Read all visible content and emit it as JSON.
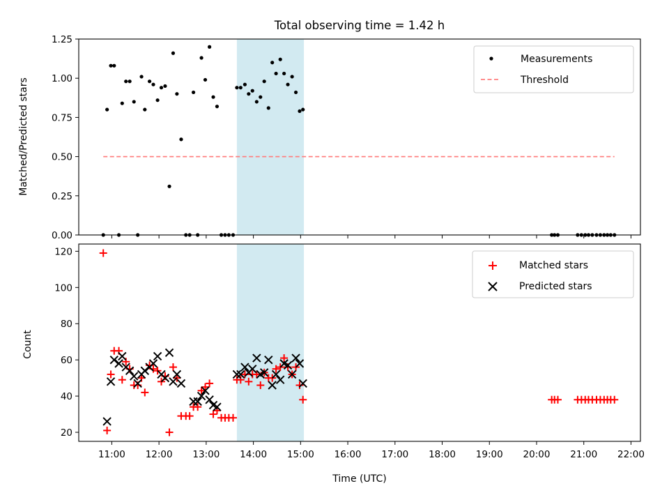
{
  "chart_data": [
    {
      "type": "scatter",
      "title": "Total observing time = 1.42 h",
      "xlabel": "",
      "ylabel": "Matched/Predicted stars",
      "ylim": [
        0,
        1.25
      ],
      "yticks": [
        "0.00",
        "0.25",
        "0.50",
        "0.75",
        "1.00",
        "1.25"
      ],
      "xlim_hours": [
        10.3,
        22.2
      ],
      "highlight_span_hours": [
        13.65,
        15.07
      ],
      "highlight_color": "#add8e6",
      "legend_position": "top-right",
      "series": [
        {
          "name": "Measurements",
          "color": "#000000",
          "marker": "dot",
          "x_hours": [
            10.82,
            10.9,
            10.98,
            11.05,
            11.15,
            11.22,
            11.3,
            11.38,
            11.47,
            11.55,
            11.63,
            11.7,
            11.8,
            11.88,
            11.97,
            12.05,
            12.13,
            12.22,
            12.3,
            12.38,
            12.47,
            12.57,
            12.65,
            12.73,
            12.82,
            12.9,
            12.98,
            13.07,
            13.15,
            13.23,
            13.32,
            13.4,
            13.48,
            13.57,
            13.65,
            13.73,
            13.82,
            13.9,
            13.98,
            14.07,
            14.15,
            14.23,
            14.32,
            14.4,
            14.48,
            14.57,
            14.65,
            14.73,
            14.82,
            14.9,
            14.98,
            15.05,
            20.32,
            20.38,
            20.45,
            20.87,
            20.95,
            21.03,
            21.1,
            21.18,
            21.27,
            21.35,
            21.43,
            21.5,
            21.57,
            21.65
          ],
          "y": [
            0.0,
            0.8,
            1.08,
            1.08,
            0.0,
            0.84,
            0.98,
            0.98,
            0.85,
            0.0,
            1.01,
            0.8,
            0.98,
            0.96,
            0.86,
            0.94,
            0.95,
            0.31,
            1.16,
            0.9,
            0.61,
            0.0,
            0.0,
            0.91,
            0.0,
            1.13,
            0.99,
            1.2,
            0.88,
            0.82,
            0.0,
            0.0,
            0.0,
            0.0,
            0.94,
            0.94,
            0.96,
            0.9,
            0.92,
            0.85,
            0.88,
            0.98,
            0.81,
            1.1,
            1.03,
            1.12,
            1.03,
            0.96,
            1.01,
            0.91,
            0.79,
            0.8,
            0.0,
            0.0,
            0.0,
            0.0,
            0.0,
            0.0,
            0.0,
            0.0,
            0.0,
            0.0,
            0.0,
            0.0,
            0.0,
            0.0
          ]
        },
        {
          "name": "Threshold",
          "color": "#ff7f7f",
          "style": "dashed",
          "x_hours": [
            10.82,
            21.65
          ],
          "y": [
            0.5,
            0.5
          ]
        }
      ]
    },
    {
      "type": "scatter",
      "title": "",
      "xlabel": "Time (UTC)",
      "ylabel": "Count",
      "ylim": [
        15,
        124
      ],
      "yticks": [
        "20",
        "40",
        "60",
        "80",
        "100",
        "120"
      ],
      "xlim_hours": [
        10.3,
        22.2
      ],
      "xticks": [
        "11:00",
        "12:00",
        "13:00",
        "14:00",
        "15:00",
        "16:00",
        "17:00",
        "18:00",
        "19:00",
        "20:00",
        "21:00",
        "22:00"
      ],
      "highlight_span_hours": [
        13.65,
        15.07
      ],
      "highlight_color": "#add8e6",
      "legend_position": "top-right",
      "series": [
        {
          "name": "Matched stars",
          "color": "#ff0000",
          "marker": "plus",
          "x_hours": [
            10.82,
            10.9,
            10.98,
            11.05,
            11.15,
            11.22,
            11.3,
            11.38,
            11.47,
            11.55,
            11.63,
            11.7,
            11.8,
            11.88,
            11.97,
            12.05,
            12.13,
            12.22,
            12.3,
            12.38,
            12.47,
            12.57,
            12.65,
            12.73,
            12.82,
            12.9,
            12.98,
            13.07,
            13.15,
            13.23,
            13.32,
            13.4,
            13.48,
            13.57,
            13.65,
            13.73,
            13.82,
            13.9,
            13.98,
            14.07,
            14.15,
            14.23,
            14.32,
            14.4,
            14.48,
            14.57,
            14.65,
            14.73,
            14.82,
            14.9,
            14.98,
            15.05,
            20.32,
            20.38,
            20.45,
            20.87,
            20.95,
            21.03,
            21.1,
            21.18,
            21.27,
            21.35,
            21.43,
            21.5,
            21.57,
            21.65
          ],
          "y": [
            119,
            21,
            52,
            65,
            65,
            49,
            59,
            55,
            46,
            46,
            50,
            42,
            57,
            55,
            54,
            48,
            51,
            20,
            56,
            50,
            29,
            29,
            29,
            34,
            34,
            43,
            45,
            47,
            30,
            32,
            28,
            28,
            28,
            28,
            49,
            49,
            52,
            48,
            52,
            52,
            46,
            53,
            50,
            50,
            55,
            56,
            61,
            56,
            52,
            56,
            46,
            38,
            38,
            38,
            38,
            38,
            38,
            38,
            38,
            38,
            38,
            38,
            38,
            38,
            38,
            38
          ]
        },
        {
          "name": "Predicted stars",
          "color": "#000000",
          "marker": "x",
          "x_hours": [
            10.9,
            10.98,
            11.05,
            11.15,
            11.22,
            11.3,
            11.38,
            11.47,
            11.55,
            11.63,
            11.7,
            11.8,
            11.88,
            11.97,
            12.05,
            12.13,
            12.22,
            12.3,
            12.38,
            12.47,
            12.73,
            12.82,
            12.9,
            12.98,
            13.07,
            13.15,
            13.23,
            13.65,
            13.73,
            13.82,
            13.9,
            13.98,
            14.07,
            14.15,
            14.23,
            14.32,
            14.4,
            14.48,
            14.57,
            14.65,
            14.73,
            14.82,
            14.9,
            14.98,
            15.05
          ],
          "y": [
            26,
            48,
            60,
            58,
            62,
            56,
            54,
            51,
            47,
            52,
            54,
            56,
            58,
            62,
            52,
            50,
            64,
            48,
            52,
            47,
            37,
            37,
            40,
            43,
            38,
            35,
            34,
            52,
            52,
            56,
            53,
            55,
            61,
            52,
            53,
            60,
            46,
            52,
            49,
            58,
            57,
            52,
            61,
            58,
            47
          ]
        }
      ]
    }
  ]
}
